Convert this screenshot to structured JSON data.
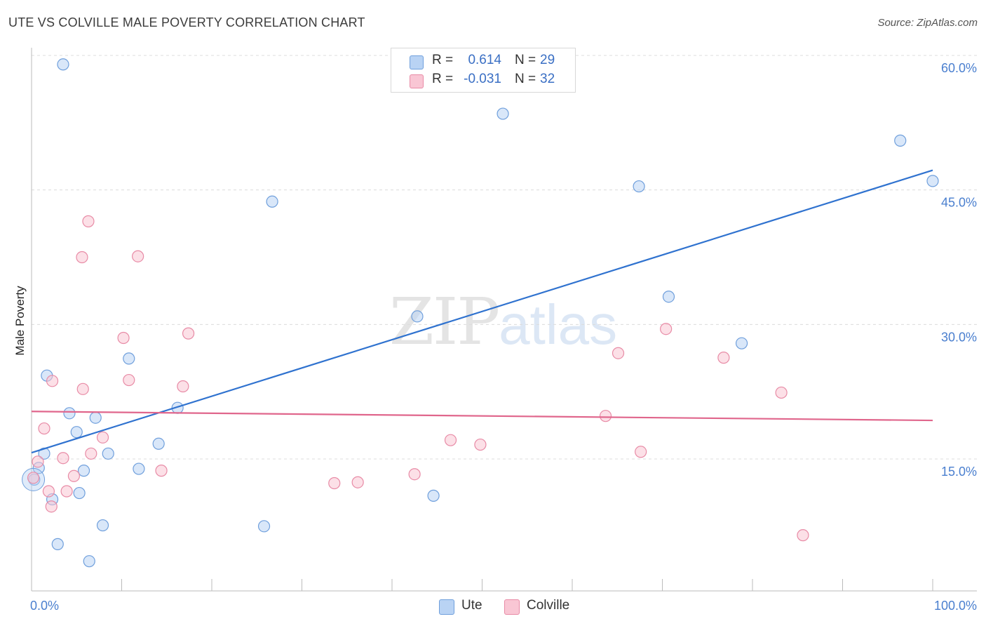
{
  "title": "UTE VS COLVILLE MALE POVERTY CORRELATION CHART",
  "source": "Source: ZipAtlas.com",
  "watermark": {
    "zip": "ZIP",
    "atlas": "atlas"
  },
  "legend": {
    "rows": [
      {
        "r_label": "R =",
        "r_value": "0.614",
        "n_label": "N =",
        "n_value": "29"
      },
      {
        "r_label": "R =",
        "r_value": "-0.031",
        "n_label": "N =",
        "n_value": "32"
      }
    ]
  },
  "bottom_legend": {
    "series1": "Ute",
    "series2": "Colville"
  },
  "colors": {
    "ute_fill": "#b9d3f4",
    "ute_stroke": "#6f9fdc",
    "ute_line": "#2f72cf",
    "col_fill": "#f9c6d4",
    "col_stroke": "#e88ba6",
    "col_line": "#e0668c",
    "grid": "#dcdcdc",
    "axis": "#bbbbbb"
  },
  "chart_data": {
    "type": "scatter",
    "title": "UTE VS COLVILLE MALE POVERTY CORRELATION CHART",
    "xlabel": "",
    "ylabel": "Male Poverty",
    "xlim": [
      0,
      100
    ],
    "ylim": [
      0,
      61
    ],
    "x_tick_labels": {
      "min": "0.0%",
      "max": "100.0%"
    },
    "y_ticks": [
      {
        "value": 15,
        "label": "15.0%"
      },
      {
        "value": 30,
        "label": "30.0%"
      },
      {
        "value": 45,
        "label": "45.0%"
      },
      {
        "value": 60,
        "label": "60.0%"
      }
    ],
    "series": [
      {
        "name": "Ute",
        "r": 0.614,
        "n": 29,
        "trend": {
          "x": [
            0,
            100
          ],
          "y": [
            15.7,
            47.2
          ]
        },
        "points": [
          {
            "x": 3.5,
            "y": 59.0
          },
          {
            "x": 52.3,
            "y": 53.5
          },
          {
            "x": 96.4,
            "y": 50.5
          },
          {
            "x": 100.0,
            "y": 46.0
          },
          {
            "x": 67.4,
            "y": 45.4
          },
          {
            "x": 26.7,
            "y": 43.7
          },
          {
            "x": 70.7,
            "y": 33.1
          },
          {
            "x": 42.8,
            "y": 30.9
          },
          {
            "x": 78.8,
            "y": 27.9
          },
          {
            "x": 10.8,
            "y": 26.2
          },
          {
            "x": 1.7,
            "y": 24.3
          },
          {
            "x": 4.2,
            "y": 20.1
          },
          {
            "x": 16.2,
            "y": 20.7
          },
          {
            "x": 7.1,
            "y": 19.6
          },
          {
            "x": 5.0,
            "y": 18.0
          },
          {
            "x": 14.1,
            "y": 16.7
          },
          {
            "x": 1.4,
            "y": 15.6
          },
          {
            "x": 8.5,
            "y": 15.6
          },
          {
            "x": 0.8,
            "y": 14.0
          },
          {
            "x": 11.9,
            "y": 13.9
          },
          {
            "x": 5.8,
            "y": 13.7
          },
          {
            "x": 0.3,
            "y": 12.7
          },
          {
            "x": 5.3,
            "y": 11.2
          },
          {
            "x": 2.3,
            "y": 10.5
          },
          {
            "x": 44.6,
            "y": 10.9
          },
          {
            "x": 7.9,
            "y": 7.6
          },
          {
            "x": 25.8,
            "y": 7.5
          },
          {
            "x": 2.9,
            "y": 5.5
          },
          {
            "x": 6.4,
            "y": 3.6
          }
        ]
      },
      {
        "name": "Colville",
        "r": -0.031,
        "n": 32,
        "trend": {
          "x": [
            0,
            100
          ],
          "y": [
            20.3,
            19.3
          ]
        },
        "points": [
          {
            "x": 6.3,
            "y": 41.5
          },
          {
            "x": 5.6,
            "y": 37.5
          },
          {
            "x": 11.8,
            "y": 37.6
          },
          {
            "x": 17.4,
            "y": 29.0
          },
          {
            "x": 70.4,
            "y": 29.5
          },
          {
            "x": 10.2,
            "y": 28.5
          },
          {
            "x": 65.1,
            "y": 26.8
          },
          {
            "x": 76.8,
            "y": 26.3
          },
          {
            "x": 2.3,
            "y": 23.7
          },
          {
            "x": 10.8,
            "y": 23.8
          },
          {
            "x": 16.8,
            "y": 23.1
          },
          {
            "x": 5.7,
            "y": 22.8
          },
          {
            "x": 83.2,
            "y": 22.4
          },
          {
            "x": 63.7,
            "y": 19.8
          },
          {
            "x": 1.4,
            "y": 18.4
          },
          {
            "x": 7.9,
            "y": 17.4
          },
          {
            "x": 46.5,
            "y": 17.1
          },
          {
            "x": 49.8,
            "y": 16.6
          },
          {
            "x": 67.6,
            "y": 15.8
          },
          {
            "x": 6.6,
            "y": 15.6
          },
          {
            "x": 3.5,
            "y": 15.1
          },
          {
            "x": 0.7,
            "y": 14.7
          },
          {
            "x": 14.4,
            "y": 13.7
          },
          {
            "x": 4.7,
            "y": 13.1
          },
          {
            "x": 42.5,
            "y": 13.3
          },
          {
            "x": 0.2,
            "y": 12.9
          },
          {
            "x": 33.6,
            "y": 12.3
          },
          {
            "x": 36.2,
            "y": 12.4
          },
          {
            "x": 1.9,
            "y": 11.4
          },
          {
            "x": 3.9,
            "y": 11.4
          },
          {
            "x": 2.2,
            "y": 9.7
          },
          {
            "x": 85.6,
            "y": 6.5
          }
        ]
      }
    ]
  }
}
